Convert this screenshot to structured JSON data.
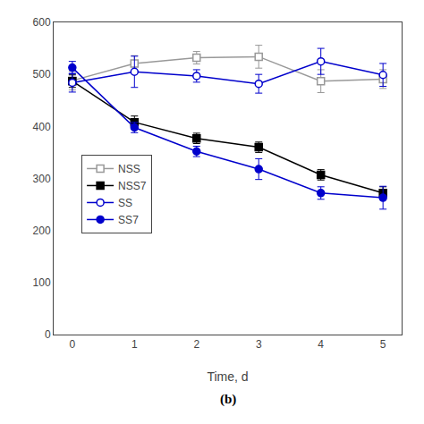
{
  "chart_data": {
    "type": "line",
    "x_label": "Time, d",
    "annotations": [
      "(b)"
    ],
    "x": [
      0,
      1,
      2,
      3,
      4,
      5
    ],
    "series": [
      {
        "name": "NSS",
        "color": "#999999",
        "marker": "square-open",
        "values": [
          488,
          521,
          532,
          534,
          487,
          491
        ],
        "errors": [
          18,
          15,
          12,
          22,
          22,
          18
        ]
      },
      {
        "name": "NSS7",
        "color": "#000000",
        "marker": "square",
        "values": [
          487,
          408,
          377,
          360,
          307,
          272
        ],
        "errors": [
          12,
          12,
          10,
          10,
          10,
          12
        ]
      },
      {
        "name": "SS",
        "color": "#0000cc",
        "marker": "circle-open",
        "values": [
          484,
          505,
          497,
          482,
          525,
          499
        ],
        "errors": [
          18,
          30,
          12,
          18,
          25,
          22
        ]
      },
      {
        "name": "SS7",
        "color": "#0000cc",
        "marker": "circle",
        "values": [
          513,
          398,
          352,
          318,
          272,
          263
        ],
        "errors": [
          12,
          10,
          10,
          20,
          12,
          22
        ]
      }
    ],
    "xlim": [
      -0.3,
      5.3
    ],
    "xticks": [
      0,
      1,
      2,
      3,
      4,
      5
    ],
    "ylim": [
      0,
      600
    ],
    "yticks": [
      0,
      100,
      200,
      300,
      400,
      500,
      600
    ],
    "grid": false,
    "legend": "center left"
  }
}
